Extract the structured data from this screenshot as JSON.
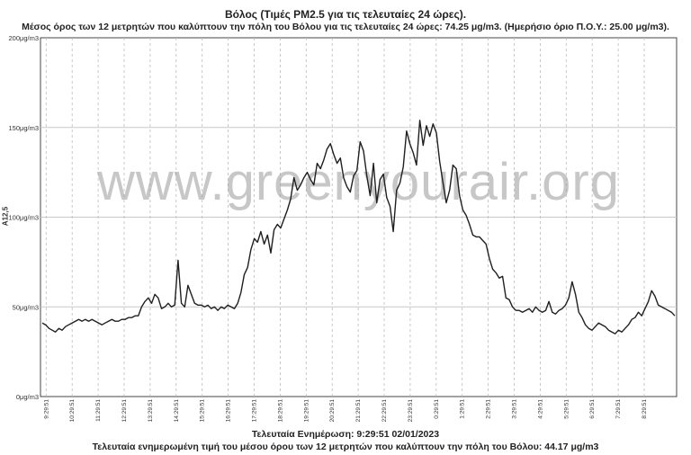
{
  "title": "Βόλος (Τιμές PM2.5 για τις τελευταίες 24 ώρες).",
  "subtitle": "Μέσος όρος των 12 μετρητών που καλύπτουν την πόλη του Βόλου για τις τελευταίες 24 ώρες: 74.25 μg/m3. (Ημερήσιο όριο Π.Ο.Υ.: 25.00 μg/m3).",
  "watermark": "www.greenyourair.org",
  "footer": {
    "updated": "Τελευταία Ενημέρωση: 9:29:51 02/01/2023",
    "last_value": "Τελευταία ενημερωμένη τιμή του μέσου όρου των 12 μετρητών που καλύπτουν την πόλη του Βόλου: 44.17 μg/m3"
  },
  "chart_data": {
    "type": "line",
    "title": "Βόλος (Τιμές PM2.5 για τις τελευταίες 24 ώρες).",
    "ylabel": "A12,5",
    "ylim": [
      0,
      200
    ],
    "yticks": [
      "0μg/m3",
      "50μg/m3",
      "100μg/m3",
      "150μg/m3",
      "200μg/m3"
    ],
    "ytick_values": [
      0,
      50,
      100,
      150,
      200
    ],
    "xticks": [
      "9:29:51",
      "10:29:51",
      "11:29:51",
      "12:29:51",
      "13:29:51",
      "14:29:51",
      "15:29:51",
      "16:29:51",
      "17:29:51",
      "18:29:51",
      "19:29:51",
      "20:29:51",
      "21:29:51",
      "22:29:51",
      "23:29:51",
      "0:29:51",
      "1:29:51",
      "2:29:51",
      "3:29:51",
      "4:29:51",
      "5:29:51",
      "6:29:51",
      "7:29:51",
      "8:29:51"
    ],
    "grid": true,
    "series": [
      {
        "values": [
          41,
          40,
          38,
          37,
          36,
          38,
          37,
          39,
          40,
          41,
          42,
          43,
          42,
          43,
          42,
          43,
          42,
          41,
          40,
          41,
          42,
          43,
          42,
          42,
          43,
          43,
          44,
          44,
          45,
          45,
          50,
          53,
          55,
          52,
          57,
          55,
          49,
          50,
          52,
          50,
          51,
          76,
          52,
          50,
          62,
          57,
          52,
          51,
          51,
          50,
          51,
          49,
          50,
          48,
          50,
          49,
          51,
          50,
          49,
          52,
          58,
          68,
          72,
          82,
          88,
          86,
          92,
          85,
          90,
          80,
          93,
          96,
          94,
          99,
          104,
          110,
          122,
          115,
          118,
          122,
          125,
          121,
          118,
          130,
          127,
          132,
          138,
          141,
          135,
          130,
          133,
          122,
          117,
          114,
          123,
          126,
          142,
          137,
          123,
          112,
          130,
          108,
          121,
          124,
          111,
          106,
          92,
          115,
          119,
          128,
          148,
          141,
          136,
          129,
          154,
          140,
          151,
          145,
          152,
          147,
          131,
          119,
          108,
          115,
          129,
          127,
          112,
          104,
          101,
          96,
          90,
          89,
          89,
          87,
          85,
          77,
          71,
          69,
          66,
          67,
          55,
          54,
          50,
          48,
          48,
          47,
          48,
          49,
          47,
          50,
          48,
          47,
          48,
          53,
          47,
          46,
          48,
          49,
          51,
          55,
          64,
          57,
          47,
          44,
          40,
          38,
          37,
          39,
          41,
          40,
          39,
          37,
          36,
          35,
          37,
          36,
          38,
          40,
          43,
          44,
          47,
          45,
          49,
          53,
          59,
          56,
          51,
          50,
          49,
          48,
          47,
          45
        ]
      }
    ]
  }
}
